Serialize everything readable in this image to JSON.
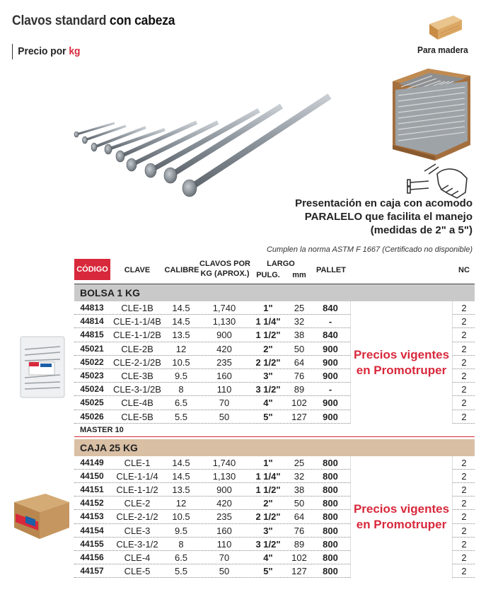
{
  "header": {
    "title_regular": "Clavos standard",
    "title_bold": "con cabeza",
    "price_prefix": "Precio por",
    "price_unit": "kg"
  },
  "wood_label": "Para madera",
  "presentation": {
    "line1": "Presentación en caja con acomodo",
    "line2": "PARALELO que facilita el manejo",
    "line3": "(medidas de 2\" a 5\")"
  },
  "norma": "Cumplen la norma ASTM F 1667 (Certificado no disponible)",
  "table_headers": {
    "codigo": "CÓDIGO",
    "clave": "CLAVE",
    "calibre": "CALIBRE",
    "clavos_por_1": "CLAVOS POR",
    "clavos_por_2": "KG (APROX.)",
    "largo": "LARGO",
    "pulg": "PULG.",
    "mm": "mm",
    "pallet": "PALLET",
    "nc": "NC"
  },
  "bolsa": {
    "title": "BOLSA 1 KG",
    "promo_line1": "Precios vigentes",
    "promo_line2": "en Promotruper",
    "master": "MASTER 10",
    "rows": [
      {
        "code": "44813",
        "clave": "CLE-1B",
        "calibre": "14.5",
        "kg": "1,740",
        "pulg": "1\"",
        "mm": "25",
        "pallet": "840",
        "nc": "2"
      },
      {
        "code": "44814",
        "clave": "CLE-1-1/4B",
        "calibre": "14.5",
        "kg": "1,130",
        "pulg": "1 1/4\"",
        "mm": "32",
        "pallet": "-",
        "nc": "2"
      },
      {
        "code": "44815",
        "clave": "CLE-1-1/2B",
        "calibre": "13.5",
        "kg": "900",
        "pulg": "1 1/2\"",
        "mm": "38",
        "pallet": "840",
        "nc": "2"
      },
      {
        "code": "45021",
        "clave": "CLE-2B",
        "calibre": "12",
        "kg": "420",
        "pulg": "2\"",
        "mm": "50",
        "pallet": "900",
        "nc": "2"
      },
      {
        "code": "45022",
        "clave": "CLE-2-1/2B",
        "calibre": "10.5",
        "kg": "235",
        "pulg": "2 1/2\"",
        "mm": "64",
        "pallet": "900",
        "nc": "2"
      },
      {
        "code": "45023",
        "clave": "CLE-3B",
        "calibre": "9.5",
        "kg": "160",
        "pulg": "3\"",
        "mm": "76",
        "pallet": "900",
        "nc": "2"
      },
      {
        "code": "45024",
        "clave": "CLE-3-1/2B",
        "calibre": "8",
        "kg": "110",
        "pulg": "3 1/2\"",
        "mm": "89",
        "pallet": "-",
        "nc": "2"
      },
      {
        "code": "45025",
        "clave": "CLE-4B",
        "calibre": "6.5",
        "kg": "70",
        "pulg": "4\"",
        "mm": "102",
        "pallet": "900",
        "nc": "2"
      },
      {
        "code": "45026",
        "clave": "CLE-5B",
        "calibre": "5.5",
        "kg": "50",
        "pulg": "5\"",
        "mm": "127",
        "pallet": "900",
        "nc": "2"
      }
    ]
  },
  "caja": {
    "title": "CAJA 25 KG",
    "promo_line1": "Precios vigentes",
    "promo_line2": "en Promotruper",
    "rows": [
      {
        "code": "44149",
        "clave": "CLE-1",
        "calibre": "14.5",
        "kg": "1,740",
        "pulg": "1\"",
        "mm": "25",
        "pallet": "800",
        "nc": "2"
      },
      {
        "code": "44150",
        "clave": "CLE-1-1/4",
        "calibre": "14.5",
        "kg": "1,130",
        "pulg": "1 1/4\"",
        "mm": "32",
        "pallet": "800",
        "nc": "2"
      },
      {
        "code": "44151",
        "clave": "CLE-1-1/2",
        "calibre": "13.5",
        "kg": "900",
        "pulg": "1 1/2\"",
        "mm": "38",
        "pallet": "800",
        "nc": "2"
      },
      {
        "code": "44152",
        "clave": "CLE-2",
        "calibre": "12",
        "kg": "420",
        "pulg": "2\"",
        "mm": "50",
        "pallet": "800",
        "nc": "2"
      },
      {
        "code": "44153",
        "clave": "CLE-2-1/2",
        "calibre": "10.5",
        "kg": "235",
        "pulg": "2 1/2\"",
        "mm": "64",
        "pallet": "800",
        "nc": "2"
      },
      {
        "code": "44154",
        "clave": "CLE-3",
        "calibre": "9.5",
        "kg": "160",
        "pulg": "3\"",
        "mm": "76",
        "pallet": "800",
        "nc": "2"
      },
      {
        "code": "44155",
        "clave": "CLE-3-1/2",
        "calibre": "8",
        "kg": "110",
        "pulg": "3 1/2\"",
        "mm": "89",
        "pallet": "800",
        "nc": "2"
      },
      {
        "code": "44156",
        "clave": "CLE-4",
        "calibre": "6.5",
        "kg": "70",
        "pulg": "4\"",
        "mm": "102",
        "pallet": "800",
        "nc": "2"
      },
      {
        "code": "44157",
        "clave": "CLE-5",
        "calibre": "5.5",
        "kg": "50",
        "pulg": "5\"",
        "mm": "127",
        "pallet": "800",
        "nc": "2"
      }
    ]
  },
  "colors": {
    "accent": "#d8283b",
    "section_gray": "#c9c9c9",
    "section_tan": "#d9bfa4"
  }
}
